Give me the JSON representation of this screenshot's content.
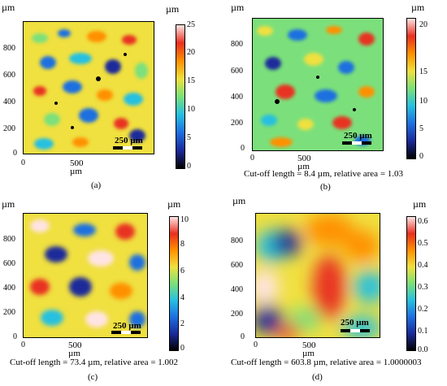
{
  "panels": {
    "a": {
      "letter": "(a)",
      "caption": "",
      "y_unit": "µm",
      "x_unit_label": "500 µm",
      "y_ticks": [
        "0",
        "200",
        "400",
        "600",
        "800"
      ],
      "x_ticks": [
        "0"
      ],
      "cbar_unit": "µm",
      "cbar_ticks": [
        "25",
        "20",
        "15",
        "10",
        "5",
        "0"
      ],
      "scale_bar": "250 µm"
    },
    "b": {
      "letter": "(b)",
      "caption": "Cut-off length = 8.4 µm, relative area = 1.03",
      "y_unit": "µm",
      "x_unit_label": "500 µm",
      "y_ticks": [
        "0",
        "200",
        "400",
        "600",
        "800"
      ],
      "x_ticks": [
        "0"
      ],
      "cbar_unit": "µm",
      "cbar_ticks": [
        "20",
        "15",
        "10",
        "5",
        "0"
      ],
      "scale_bar": "250 µm"
    },
    "c": {
      "letter": "(c)",
      "caption": "Cut-off length = 73.4 µm, relative area = 1.002",
      "y_unit": "µm",
      "x_unit_label": "500 µm",
      "y_ticks": [
        "0",
        "200",
        "400",
        "600",
        "800"
      ],
      "x_ticks": [
        "0"
      ],
      "cbar_unit": "µm",
      "cbar_ticks": [
        "10",
        "8",
        "6",
        "4",
        "2",
        "0"
      ],
      "scale_bar": "250 µm"
    },
    "d": {
      "letter": "(d)",
      "caption": "Cut-off length = 603.8 µm, relative area = 1.0000003",
      "y_unit": "µm",
      "x_unit_label": "500 µm",
      "y_ticks": [
        "0",
        "200",
        "400",
        "600",
        "800"
      ],
      "x_ticks": [
        "0"
      ],
      "cbar_unit": "µm",
      "cbar_ticks": [
        "0.6",
        "0.5",
        "0.4",
        "0.3",
        "0.2",
        "0.1",
        "0.0"
      ],
      "scale_bar": "250 µm"
    }
  },
  "colormap": [
    "#000000",
    "#1a2a9a",
    "#1e6fe0",
    "#27c0e0",
    "#7be07b",
    "#f0e040",
    "#ff9000",
    "#e83020",
    "#ffe4e4"
  ]
}
